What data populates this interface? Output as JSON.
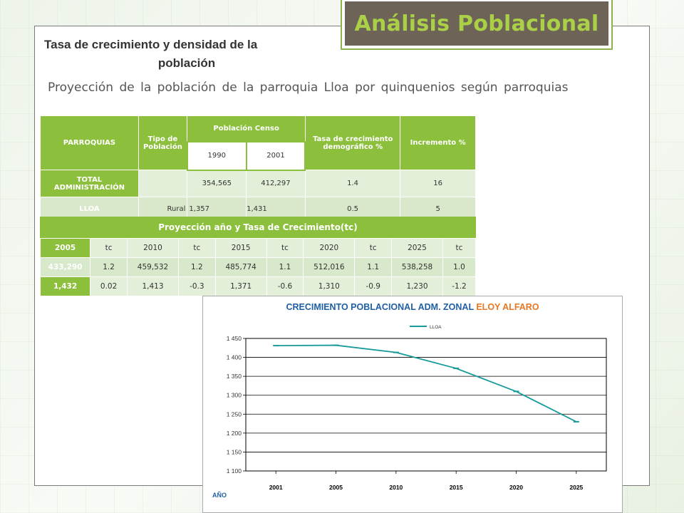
{
  "header": {
    "title": "Análisis Poblacional"
  },
  "subtitle": {
    "line1": "Tasa de crecimiento y densidad de la",
    "line2": "población"
  },
  "description": "Proyección de la población de la parroquia Lloa por quinquenios según parroquias",
  "table1": {
    "headers": {
      "parroquias": "PARROQUIAS",
      "tipo": "Tipo de Población",
      "censo": "Población Censo",
      "year1": "1990",
      "year2": "2001",
      "tasa": "Tasa de crecimiento demográfico %",
      "incremento": "Incremento %"
    },
    "rows": [
      {
        "name": "TOTAL ADMINISTRACIÓN",
        "tipo": "",
        "p1990": "354,565",
        "p2001": "412,297",
        "tasa": "1.4",
        "inc": "16"
      },
      {
        "name": "LLOA",
        "tipo": "Rural",
        "p1990": "1,357",
        "p2001": "1,431",
        "tasa": "0.5",
        "inc": "5"
      }
    ]
  },
  "projection": {
    "title": "Proyección año y Tasa de Crecimiento(tc)",
    "header": [
      "2005",
      "tc",
      "2010",
      "tc",
      "2015",
      "tc",
      "2020",
      "tc",
      "2025",
      "tc"
    ],
    "rows": [
      [
        "433,290",
        "1.2",
        "459,532",
        "1.2",
        "485,774",
        "1.1",
        "512,016",
        "1.1",
        "538,258",
        "1.0"
      ],
      [
        "1,432",
        "0.02",
        "1,413",
        "-0.3",
        "1,371",
        "-0.6",
        "1,310",
        "-0.9",
        "1,230",
        "-1.2"
      ]
    ]
  },
  "chart_title": {
    "main": "CRECIMIENTO POBLACIONAL ADM. ZONAL ",
    "accent": "ELOY ALFARO"
  },
  "chart_data": {
    "type": "line",
    "title": "CRECIMIENTO POBLACIONAL ADM. ZONAL ELOY ALFARO",
    "xlabel": "AÑO",
    "ylabel": "",
    "categories": [
      "2001",
      "2005",
      "2010",
      "2015",
      "2020",
      "2025"
    ],
    "series": [
      {
        "name": "LLOA",
        "values": [
          1431,
          1432,
          1413,
          1371,
          1310,
          1230
        ]
      }
    ],
    "ylim": [
      1100,
      1450
    ],
    "yticks": [
      "1 100",
      "1 150",
      "1 200",
      "1 250",
      "1 300",
      "1 350",
      "1 400",
      "1 450"
    ],
    "grid": true,
    "legend": "top-center",
    "line_color": "#1a9a9a",
    "title_color": "#1f5fa6",
    "accent_color": "#e87722"
  }
}
